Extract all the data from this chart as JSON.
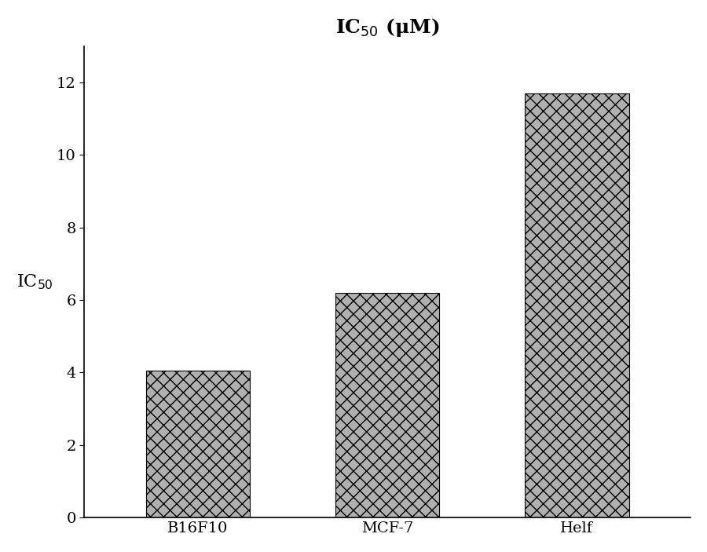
{
  "categories": [
    "B16F10",
    "MCF-7",
    "Helf"
  ],
  "values": [
    4.05,
    6.2,
    11.7
  ],
  "bar_color": "#b0b0b0",
  "bar_hatch": "xx",
  "title_main": "IC",
  "title_sub": "50",
  "title_unit": " (μM)",
  "ylabel_main": "IC",
  "ylabel_sub": "50",
  "ylim": [
    0,
    13
  ],
  "yticks": [
    0,
    2,
    4,
    6,
    8,
    10,
    12
  ],
  "title_fontsize": 18,
  "ylabel_fontsize": 16,
  "tick_fontsize": 14,
  "xlabel_fontsize": 14,
  "background_color": "#ffffff",
  "figure_background": "#ffffff",
  "bar_width": 0.55
}
